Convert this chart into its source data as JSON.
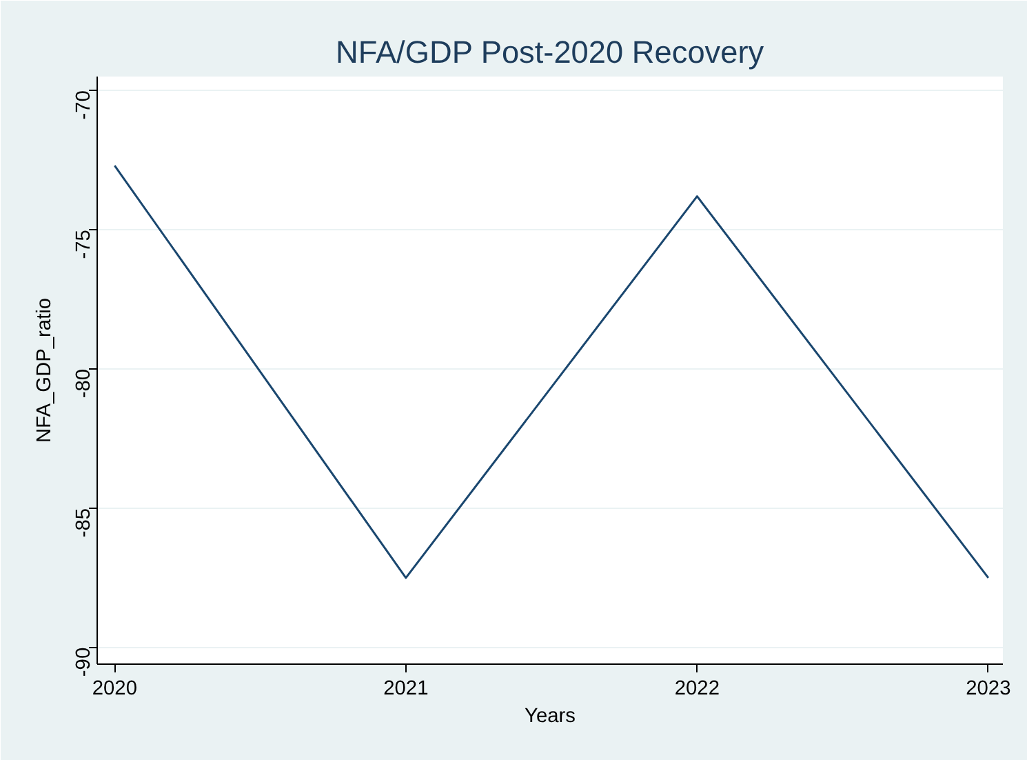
{
  "chart_data": {
    "type": "line",
    "title": "NFA/GDP Post-2020 Recovery",
    "xlabel": "Years",
    "ylabel": "NFA_GDP_ratio",
    "x": [
      2020,
      2021,
      2022,
      2023
    ],
    "series": [
      {
        "color": "#1a476f",
        "values": [
          -72.7,
          -87.5,
          -73.8,
          -87.5
        ]
      }
    ],
    "xlim": [
      2019.94,
      2023.05
    ],
    "xticks": [
      2020,
      2021,
      2022,
      2023
    ],
    "ylim": [
      -90.6,
      -69.5
    ],
    "yticks": [
      -90,
      -85,
      -80,
      -75,
      -70
    ],
    "grid": "y",
    "line_style": "solid"
  }
}
